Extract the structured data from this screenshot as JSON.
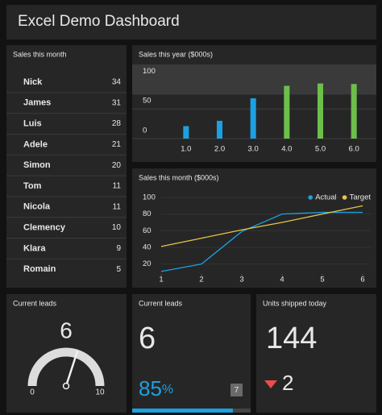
{
  "header": {
    "title": "Excel Demo Dashboard"
  },
  "sales_table": {
    "title": "Sales this month",
    "rows": [
      [
        "Nick",
        34
      ],
      [
        "James",
        31
      ],
      [
        "Luis",
        28
      ],
      [
        "Adele",
        21
      ],
      [
        "Simon",
        20
      ],
      [
        "Tom",
        11
      ],
      [
        "Nicola",
        11
      ],
      [
        "Clemency",
        10
      ],
      [
        "Klara",
        9
      ],
      [
        "Romain",
        5
      ]
    ]
  },
  "chart_data": [
    {
      "type": "bar",
      "title": "Sales this year ($000s)",
      "categories": [
        "1.0",
        "2.0",
        "3.0",
        "4.0",
        "5.0",
        "6.0"
      ],
      "values": [
        21,
        30,
        68,
        89,
        93,
        92
      ],
      "colors": [
        "#1ba1e2",
        "#1ba1e2",
        "#1ba1e2",
        "#6cc04a",
        "#6cc04a",
        "#6cc04a"
      ],
      "ylim": [
        0,
        125
      ],
      "yticks": [
        0,
        50,
        100
      ],
      "grid": true
    },
    {
      "type": "line",
      "title": "Sales this month ($000s)",
      "x": [
        1,
        2,
        3,
        4,
        5,
        6
      ],
      "xlim": [
        1,
        6
      ],
      "xticks": [
        1,
        2,
        3,
        4,
        5,
        6
      ],
      "ylim": [
        8,
        100
      ],
      "yticks": [
        20,
        40,
        60,
        80,
        100
      ],
      "legend": "top-right",
      "series": [
        {
          "name": "Actual",
          "color": "#1ba1e2",
          "values": [
            11,
            20,
            59,
            80,
            82,
            82
          ]
        },
        {
          "name": "Target",
          "color": "#e8c547",
          "values": [
            41,
            51,
            61,
            70,
            80,
            90
          ]
        }
      ]
    }
  ],
  "gauge": {
    "title": "Current leads",
    "value": 6,
    "min": 0,
    "max": 10
  },
  "leads": {
    "title": "Current leads",
    "value": 6,
    "percent": 85,
    "percent_unit": "%",
    "badge": 7,
    "color": "#1ba1e2"
  },
  "units": {
    "title": "Units shipped today",
    "value": 144,
    "change": 2,
    "change_direction": "down",
    "change_color": "#ee4b4b"
  }
}
